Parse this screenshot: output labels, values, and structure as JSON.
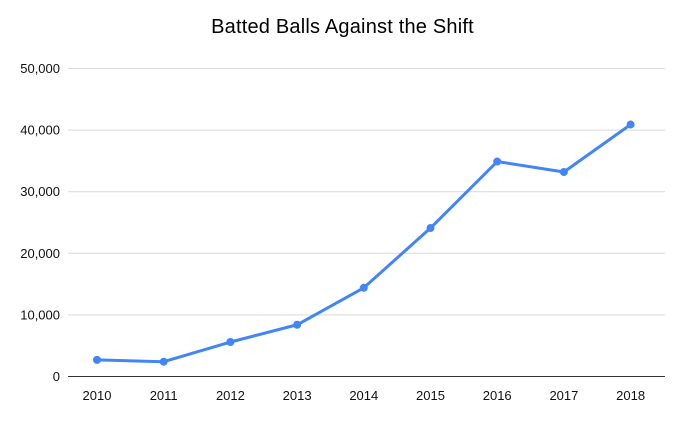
{
  "chart_data": {
    "type": "line",
    "title": "Batted Balls Against the Shift",
    "categories": [
      "2010",
      "2011",
      "2012",
      "2013",
      "2014",
      "2015",
      "2016",
      "2017",
      "2018"
    ],
    "values": [
      2700,
      2400,
      5600,
      8400,
      14400,
      24100,
      34900,
      33200,
      40900
    ],
    "xlabel": "",
    "ylabel": "",
    "ylim": [
      0,
      50000
    ],
    "yticks": [
      0,
      10000,
      20000,
      30000,
      40000,
      50000
    ],
    "y_tick_labels": [
      "0",
      "10,000",
      "20,000",
      "30,000",
      "40,000",
      "50,000"
    ],
    "grid": true,
    "legend_position": "none",
    "colors": {
      "line": "#4285f4",
      "point": "#4285f4",
      "gridline": "#d9d9d9",
      "axis_line": "#333333",
      "label_text": "#111111",
      "title_text": "#000000",
      "background": "#ffffff"
    }
  }
}
